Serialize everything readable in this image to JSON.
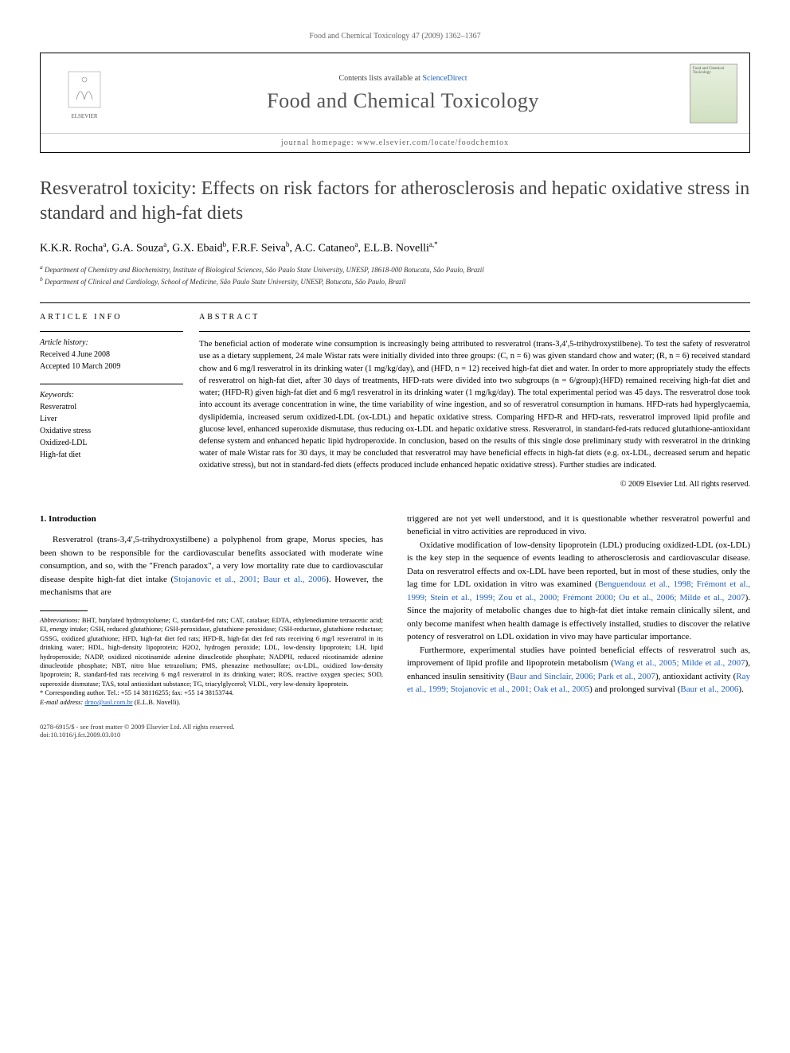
{
  "running_head": "Food and Chemical Toxicology 47 (2009) 1362–1367",
  "masthead": {
    "contents_prefix": "Contents lists available at ",
    "contents_link": "ScienceDirect",
    "journal_name": "Food and Chemical Toxicology",
    "homepage_prefix": "journal homepage: ",
    "homepage_url": "www.elsevier.com/locate/foodchemtox",
    "publisher_logo_label": "ELSEVIER",
    "cover_label": "Food and Chemical Toxicology"
  },
  "article": {
    "title": "Resveratrol toxicity: Effects on risk factors for atherosclerosis and hepatic oxidative stress in standard and high-fat diets",
    "authors_html": "K.K.R. Rocha<sup>a</sup>, G.A. Souza<sup>a</sup>, G.X. Ebaid<sup>b</sup>, F.R.F. Seiva<sup>b</sup>, A.C. Cataneo<sup>a</sup>, E.L.B. Novelli<sup>a,*</sup>",
    "affiliations": [
      "a Department of Chemistry and Biochemistry, Institute of Biological Sciences, São Paulo State University, UNESP, 18618-000 Botucatu, São Paulo, Brazil",
      "b Department of Clinical and Cardiology, School of Medicine, São Paulo State University, UNESP, Botucatu, São Paulo, Brazil"
    ]
  },
  "article_info": {
    "heading": "ARTICLE INFO",
    "history_label": "Article history:",
    "received": "Received 4 June 2008",
    "accepted": "Accepted 10 March 2009",
    "keywords_label": "Keywords:",
    "keywords": [
      "Resveratrol",
      "Liver",
      "Oxidative stress",
      "Oxidized-LDL",
      "High-fat diet"
    ]
  },
  "abstract": {
    "heading": "ABSTRACT",
    "body": "The beneficial action of moderate wine consumption is increasingly being attributed to resveratrol (trans-3,4′,5-trihydroxystilbene). To test the safety of resveratrol use as a dietary supplement, 24 male Wistar rats were initially divided into three groups: (C, n = 6) was given standard chow and water; (R, n = 6) received standard chow and 6 mg/l resveratrol in its drinking water (1 mg/kg/day), and (HFD, n = 12) received high-fat diet and water. In order to more appropriately study the effects of resveratrol on high-fat diet, after 30 days of treatments, HFD-rats were divided into two subgroups (n = 6/group):(HFD) remained receiving high-fat diet and water; (HFD-R) given high-fat diet and 6 mg/l resveratrol in its drinking water (1 mg/kg/day). The total experimental period was 45 days. The resveratrol dose took into account its average concentration in wine, the time variability of wine ingestion, and so of resveratrol consumption in humans. HFD-rats had hyperglycaemia, dyslipidemia, increased serum oxidized-LDL (ox-LDL) and hepatic oxidative stress. Comparing HFD-R and HFD-rats, resveratrol improved lipid profile and glucose level, enhanced superoxide dismutase, thus reducing ox-LDL and hepatic oxidative stress. Resveratrol, in standard-fed-rats reduced glutathione-antioxidant defense system and enhanced hepatic lipid hydroperoxide. In conclusion, based on the results of this single dose preliminary study with resveratrol in the drinking water of male Wistar rats for 30 days, it may be concluded that resveratrol may have beneficial effects in high-fat diets (e.g. ox-LDL, decreased serum and hepatic oxidative stress), but not in standard-fed diets (effects produced include enhanced hepatic oxidative stress). Further studies are indicated.",
    "copyright": "© 2009 Elsevier Ltd. All rights reserved."
  },
  "body": {
    "section_heading": "1. Introduction",
    "left_paragraphs": [
      "Resveratrol (trans-3,4′,5-trihydroxystilbene) a polyphenol from grape, Morus species, has been shown to be responsible for the cardiovascular benefits associated with moderate wine consumption, and so, with the \"French paradox\", a very low mortality rate due to cardiovascular disease despite high-fat diet intake (Stojanovic et al., 2001; Baur et al., 2006). However, the mechanisms that are"
    ],
    "right_paragraphs": [
      "triggered are not yet well understood, and it is questionable whether resveratrol powerful and beneficial in vitro activities are reproduced in vivo.",
      "Oxidative modification of low-density lipoprotein (LDL) producing oxidized-LDL (ox-LDL) is the key step in the sequence of events leading to atherosclerosis and cardiovascular disease. Data on resveratrol effects and ox-LDL have been reported, but in most of these studies, only the lag time for LDL oxidation in vitro was examined (Benguendouz et al., 1998; Frémont et al., 1999; Stein et al., 1999; Zou et al., 2000; Frémont 2000; Ou et al., 2006; Milde et al., 2007). Since the majority of metabolic changes due to high-fat diet intake remain clinically silent, and only become manifest when health damage is effectively installed, studies to discover the relative potency of resveratrol on LDL oxidation in vivo may have particular importance.",
      "Furthermore, experimental studies have pointed beneficial effects of resveratrol such as, improvement of lipid profile and lipoprotein metabolism (Wang et al., 2005; Milde et al., 2007), enhanced insulin sensitivity (Baur and Sinclair, 2006; Park et al., 2007), antioxidant activity (Ray et al., 1999; Stojanovic et al., 2001; Oak et al., 2005) and prolonged survival (Baur et al., 2006)."
    ]
  },
  "footnotes": {
    "abbrev_label": "Abbreviations:",
    "abbrev_text": " BHT, butylated hydroxytoluene; C, standard-fed rats; CAT, catalase; EDTA, ethylenediamine tetraacetic acid; EI, energy intake; GSH, reduced glutathione; GSH-peroxidase, glutathione peroxidase; GSH-reductase, glutathione reductase; GSSG, oxidized glutathione; HFD, high-fat diet fed rats; HFD-R, high-fat diet fed rats receiving 6 mg/l resveratrol in its drinking water; HDL, high-density lipoprotein; H2O2, hydrogen peroxide; LDL, low-density lipoprotein; LH, lipid hydroperoxide; NADP, oxidized nicotinamide adenine dinucleotide phosphate; NADPH, reduced nicotinamide adenine dinucleotide phosphate; NBT, nitro blue tetrazolium; PMS, phenazine methosulfate; ox-LDL, oxidized low-density lipoprotein; R, standard-fed rats receiving 6 mg/l resveratrol in its drinking water; ROS, reactive oxygen species; SOD, superoxide dismutase; TAS, total antioxidant substance; TG, triacylglycerol; VLDL, very low-density lipoprotein.",
    "corresponding_label": "* Corresponding author. ",
    "corresponding_text": "Tel.: +55 14 38116255; fax: +55 14 38153744.",
    "email_label": "E-mail address: ",
    "email": "drno@uol.com.br",
    "email_suffix": " (E.L.B. Novelli)."
  },
  "footer": {
    "line1": "0278-6915/$ - see front matter © 2009 Elsevier Ltd. All rights reserved.",
    "line2": "doi:10.1016/j.fct.2009.03.010"
  },
  "colors": {
    "link": "#2060c0",
    "text": "#000000",
    "muted": "#666666",
    "heading_grey": "#555555"
  }
}
